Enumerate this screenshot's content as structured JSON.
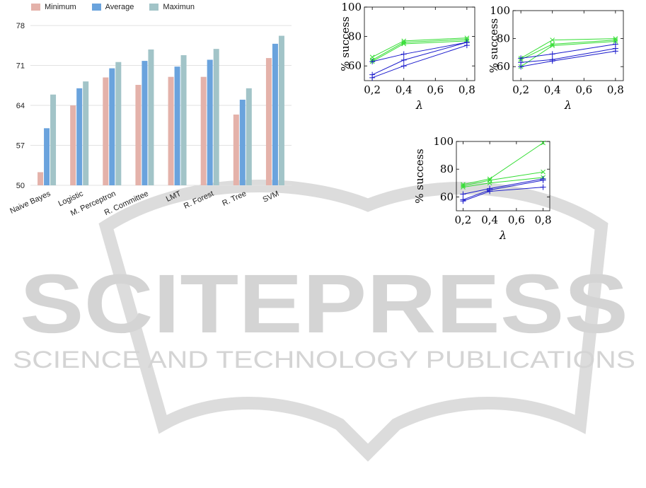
{
  "watermark": {
    "brand": "SCITEPRESS",
    "tagline": "SCIENCE AND TECHNOLOGY PUBLICATIONS",
    "color": "#d4d4d4"
  },
  "chart_data": [
    {
      "type": "bar",
      "categories": [
        "Naive Bayes",
        "Logistic",
        "M. Perceptron",
        "R. Committee",
        "LMT",
        "R. Forest",
        "R. Tree",
        "SVM"
      ],
      "series": [
        {
          "name": "Minimum",
          "color": "#e4b2aa",
          "values": [
            52.3,
            64.0,
            68.9,
            67.6,
            69.0,
            69.0,
            62.4,
            72.3
          ]
        },
        {
          "name": "Average",
          "color": "#6aa3dd",
          "values": [
            60.0,
            67.0,
            70.5,
            71.8,
            70.8,
            72.0,
            65.0,
            74.8
          ]
        },
        {
          "name": "Maximun",
          "color": "#a2c4c8",
          "values": [
            65.9,
            68.2,
            71.6,
            73.8,
            72.8,
            73.9,
            67.0,
            76.2
          ]
        }
      ],
      "yticks": [
        50,
        57,
        64,
        71,
        78
      ],
      "ylim": [
        50,
        79
      ],
      "grid": true,
      "legend": "top"
    },
    {
      "type": "line",
      "ylabel": "% success",
      "xlabel": "λ",
      "x": [
        0.2,
        0.4,
        0.8
      ],
      "xticks": [
        "0,2",
        "0,4",
        "0,6",
        "0,8"
      ],
      "yticks": [
        60,
        80,
        100
      ],
      "xlim": [
        0.15,
        0.85
      ],
      "ylim": [
        50,
        100
      ],
      "series": [
        {
          "marker": "x",
          "color": "#33dd33",
          "values": [
            66,
            77,
            79
          ]
        },
        {
          "marker": "x",
          "color": "#33dd33",
          "values": [
            64,
            76,
            78
          ]
        },
        {
          "marker": "x",
          "color": "#33dd33",
          "values": [
            63,
            75,
            77
          ]
        },
        {
          "marker": "+",
          "color": "#1a1acc",
          "values": [
            63,
            68,
            76
          ]
        },
        {
          "marker": "+",
          "color": "#1a1acc",
          "values": [
            54,
            64,
            76
          ]
        },
        {
          "marker": "+",
          "color": "#1a1acc",
          "values": [
            52,
            60,
            74
          ]
        }
      ]
    },
    {
      "type": "line",
      "ylabel": "% success",
      "xlabel": "λ",
      "x": [
        0.2,
        0.4,
        0.8
      ],
      "xticks": [
        "0,2",
        "0,4",
        "0,6",
        "0,8"
      ],
      "yticks": [
        60,
        80,
        100
      ],
      "xlim": [
        0.15,
        0.85
      ],
      "ylim": [
        50,
        100
      ],
      "series": [
        {
          "marker": "x",
          "color": "#33dd33",
          "values": [
            66,
            79,
            80
          ]
        },
        {
          "marker": "x",
          "color": "#33dd33",
          "values": [
            65,
            76,
            79
          ]
        },
        {
          "marker": "x",
          "color": "#33dd33",
          "values": [
            60,
            75,
            78
          ]
        },
        {
          "marker": "+",
          "color": "#1a1acc",
          "values": [
            66,
            69,
            76
          ]
        },
        {
          "marker": "+",
          "color": "#1a1acc",
          "values": [
            63,
            65,
            73
          ]
        },
        {
          "marker": "+",
          "color": "#1a1acc",
          "values": [
            60,
            64,
            71
          ]
        }
      ]
    },
    {
      "type": "line",
      "ylabel": "% success",
      "xlabel": "λ",
      "x": [
        0.2,
        0.4,
        0.8
      ],
      "xticks": [
        "0,2",
        "0,4",
        "0,6",
        "0,8"
      ],
      "yticks": [
        60,
        80,
        100
      ],
      "xlim": [
        0.15,
        0.85
      ],
      "ylim": [
        50,
        100
      ],
      "series": [
        {
          "marker": "x",
          "color": "#33dd33",
          "values": [
            69,
            73,
            99
          ]
        },
        {
          "marker": "x",
          "color": "#33dd33",
          "values": [
            68,
            72,
            78
          ]
        },
        {
          "marker": "x",
          "color": "#33dd33",
          "values": [
            67,
            70,
            74
          ]
        },
        {
          "marker": "+",
          "color": "#1a1acc",
          "values": [
            62,
            66,
            73
          ]
        },
        {
          "marker": "+",
          "color": "#1a1acc",
          "values": [
            58,
            65,
            72
          ]
        },
        {
          "marker": "+",
          "color": "#1a1acc",
          "values": [
            57,
            64,
            67
          ]
        }
      ]
    }
  ]
}
